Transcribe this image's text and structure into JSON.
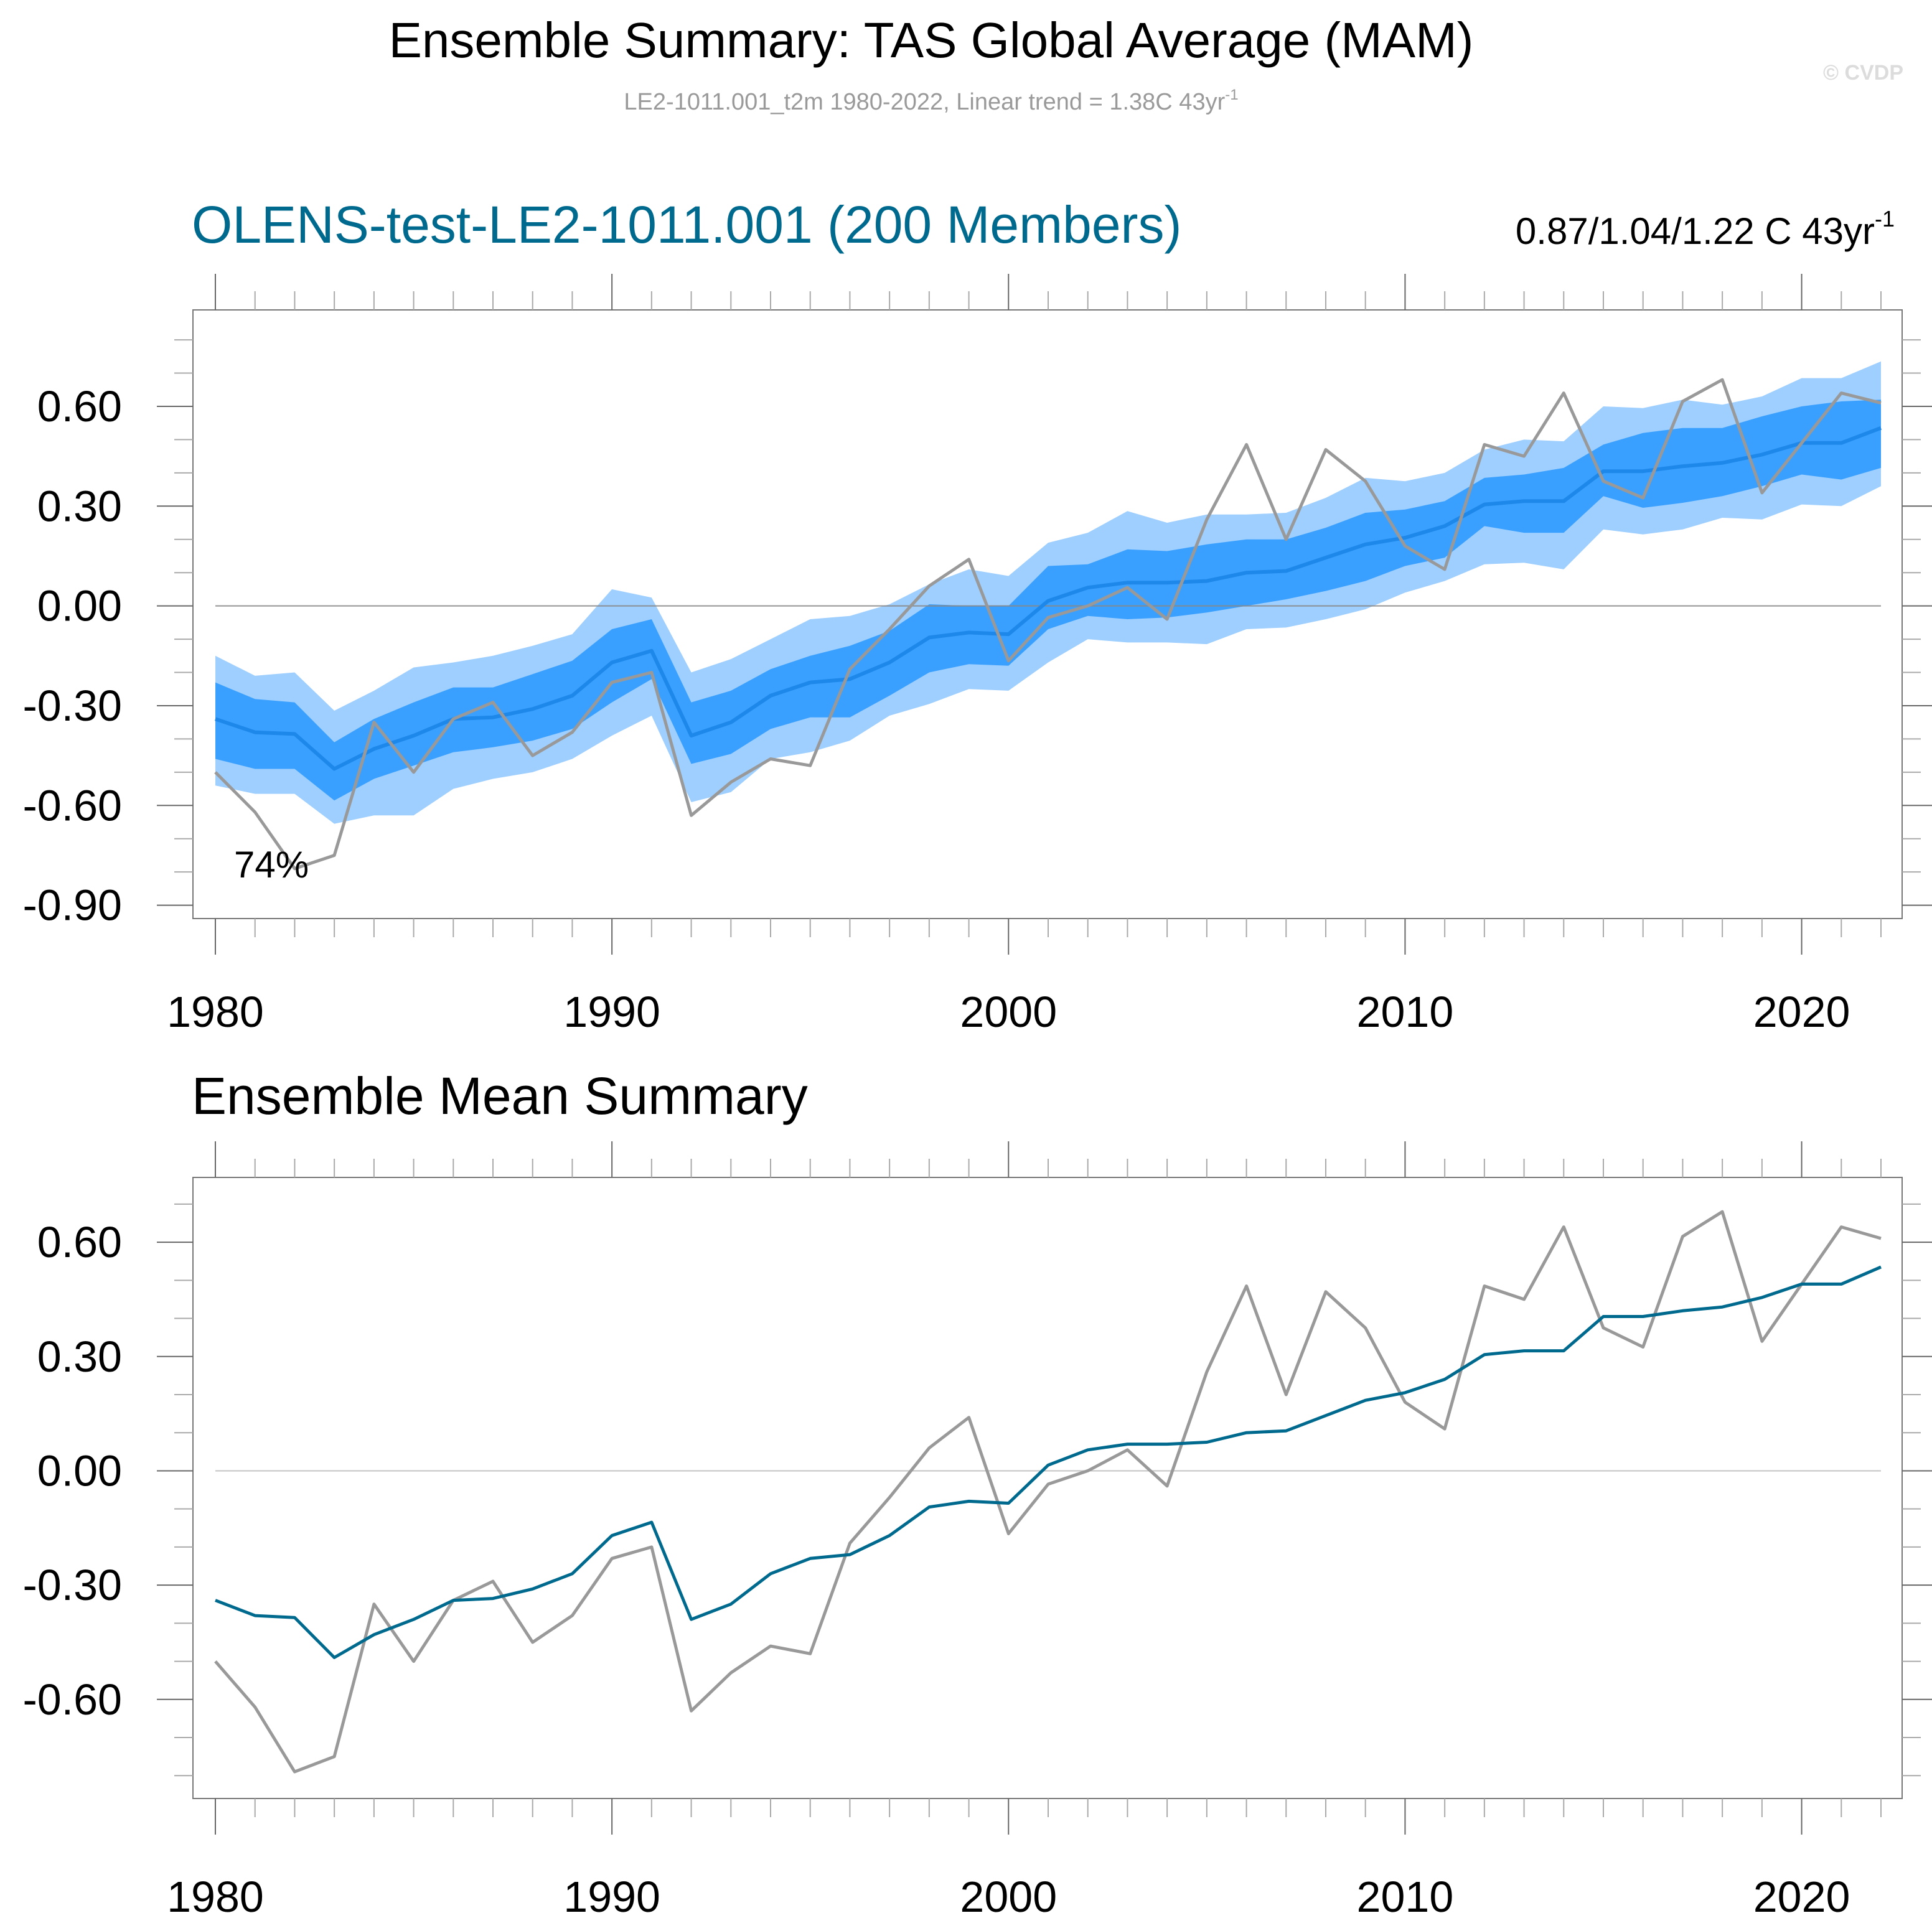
{
  "header": {
    "title": "Ensemble Summary: TAS Global Average (MAM)",
    "subtitle_main": "LE2-1011.001_t2m 1980-2022, Linear trend = 1.38C 43yr",
    "subtitle_sup": "-1",
    "watermark": "© CVDP"
  },
  "colors": {
    "outer_band": "#9ecfff",
    "inner_band": "#3aa0ff",
    "ensemble_median_top": "#1e88ea",
    "ensemble_mean_bottom": "#006a8e",
    "observations": "#999999",
    "title_blue": "#006a8e",
    "zero_line": "#888888"
  },
  "chart_data": [
    {
      "type": "area",
      "id": "ensemble-spread",
      "title": "OLENS-test-LE2-1011.001 (200 Members)",
      "right_label_main": "0.87/1.04/1.22 C 43yr",
      "right_label_sup": "-1",
      "annotation": "74%",
      "xlabel": "",
      "ylabel": "",
      "xlim": [
        1980,
        2022
      ],
      "ylim": [
        -0.94,
        0.89
      ],
      "x_ticks": [
        1980,
        1990,
        2000,
        2010,
        2020
      ],
      "x_tick_labels": [
        "1980",
        "1990",
        "2000",
        "2010",
        "2020"
      ],
      "y_ticks": [
        0.6,
        0.3,
        0.0,
        -0.3,
        -0.6,
        -0.9
      ],
      "y_tick_labels": [
        "0.60",
        "0.30",
        "0.00",
        "-0.30",
        "-0.60",
        "-0.90"
      ],
      "grid": false,
      "zero_line": true,
      "x": [
        1980,
        1981,
        1982,
        1983,
        1984,
        1985,
        1986,
        1987,
        1988,
        1989,
        1990,
        1991,
        1992,
        1993,
        1994,
        1995,
        1996,
        1997,
        1998,
        1999,
        2000,
        2001,
        2002,
        2003,
        2004,
        2005,
        2006,
        2007,
        2008,
        2009,
        2010,
        2011,
        2012,
        2013,
        2014,
        2015,
        2016,
        2017,
        2018,
        2019,
        2020,
        2021,
        2022
      ],
      "series": [
        {
          "name": "outer_upper",
          "values": [
            -0.15,
            -0.21,
            -0.2,
            -0.315,
            -0.255,
            -0.185,
            -0.17,
            -0.15,
            -0.12,
            -0.085,
            0.05,
            0.025,
            -0.2,
            -0.16,
            -0.1,
            -0.04,
            -0.03,
            0.005,
            0.065,
            0.11,
            0.09,
            0.19,
            0.22,
            0.285,
            0.25,
            0.275,
            0.275,
            0.28,
            0.325,
            0.385,
            0.375,
            0.4,
            0.47,
            0.5,
            0.495,
            0.6,
            0.595,
            0.62,
            0.605,
            0.63,
            0.685,
            0.685,
            0.735
          ]
        },
        {
          "name": "inner_upper",
          "values": [
            -0.23,
            -0.28,
            -0.29,
            -0.41,
            -0.34,
            -0.29,
            -0.245,
            -0.245,
            -0.205,
            -0.165,
            -0.07,
            -0.04,
            -0.29,
            -0.255,
            -0.19,
            -0.15,
            -0.12,
            -0.075,
            0.005,
            0.0,
            0.0,
            0.12,
            0.125,
            0.17,
            0.165,
            0.185,
            0.2,
            0.2,
            0.235,
            0.28,
            0.29,
            0.315,
            0.385,
            0.395,
            0.415,
            0.485,
            0.52,
            0.535,
            0.535,
            0.57,
            0.6,
            0.615,
            0.62
          ]
        },
        {
          "name": "median",
          "values": [
            -0.34,
            -0.38,
            -0.385,
            -0.49,
            -0.43,
            -0.39,
            -0.34,
            -0.335,
            -0.31,
            -0.27,
            -0.17,
            -0.135,
            -0.39,
            -0.35,
            -0.27,
            -0.23,
            -0.22,
            -0.17,
            -0.095,
            -0.08,
            -0.085,
            0.015,
            0.055,
            0.07,
            0.07,
            0.075,
            0.1,
            0.105,
            0.145,
            0.185,
            0.205,
            0.24,
            0.305,
            0.315,
            0.315,
            0.405,
            0.405,
            0.42,
            0.43,
            0.455,
            0.49,
            0.49,
            0.535
          ]
        },
        {
          "name": "inner_lower",
          "values": [
            -0.46,
            -0.49,
            -0.49,
            -0.585,
            -0.52,
            -0.48,
            -0.44,
            -0.425,
            -0.405,
            -0.37,
            -0.29,
            -0.22,
            -0.475,
            -0.445,
            -0.37,
            -0.335,
            -0.335,
            -0.27,
            -0.2,
            -0.175,
            -0.18,
            -0.07,
            -0.03,
            -0.04,
            -0.035,
            -0.02,
            0.0,
            0.02,
            0.045,
            0.075,
            0.12,
            0.145,
            0.24,
            0.22,
            0.22,
            0.33,
            0.295,
            0.31,
            0.33,
            0.36,
            0.395,
            0.38,
            0.415
          ]
        },
        {
          "name": "outer_lower",
          "values": [
            -0.54,
            -0.565,
            -0.565,
            -0.655,
            -0.63,
            -0.63,
            -0.55,
            -0.52,
            -0.5,
            -0.46,
            -0.39,
            -0.33,
            -0.59,
            -0.56,
            -0.46,
            -0.44,
            -0.405,
            -0.33,
            -0.295,
            -0.25,
            -0.255,
            -0.17,
            -0.1,
            -0.11,
            -0.11,
            -0.115,
            -0.07,
            -0.065,
            -0.04,
            -0.01,
            0.04,
            0.075,
            0.125,
            0.13,
            0.11,
            0.23,
            0.215,
            0.23,
            0.265,
            0.26,
            0.305,
            0.3,
            0.36
          ]
        },
        {
          "name": "observations",
          "values": [
            -0.5,
            -0.62,
            -0.79,
            -0.75,
            -0.35,
            -0.5,
            -0.34,
            -0.29,
            -0.45,
            -0.38,
            -0.23,
            -0.2,
            -0.63,
            -0.53,
            -0.46,
            -0.48,
            -0.19,
            -0.07,
            0.06,
            0.14,
            -0.165,
            -0.035,
            0.0,
            0.055,
            -0.04,
            0.26,
            0.485,
            0.2,
            0.47,
            0.375,
            0.18,
            0.11,
            0.485,
            0.45,
            0.64,
            0.375,
            0.325,
            0.615,
            0.68,
            0.34,
            0.49,
            0.64,
            0.61
          ]
        }
      ]
    },
    {
      "type": "line",
      "id": "ensemble-mean",
      "title": "Ensemble Mean Summary",
      "xlabel": "",
      "ylabel": "",
      "xlim": [
        1980,
        2022
      ],
      "ylim": [
        -0.86,
        0.77
      ],
      "x_ticks": [
        1980,
        1990,
        2000,
        2010,
        2020
      ],
      "x_tick_labels": [
        "1980",
        "1990",
        "2000",
        "2010",
        "2020"
      ],
      "y_ticks": [
        0.6,
        0.3,
        0.0,
        -0.3,
        -0.6
      ],
      "y_tick_labels": [
        "0.60",
        "0.30",
        "0.00",
        "-0.30",
        "-0.60"
      ],
      "grid": false,
      "zero_line": true,
      "x": [
        1980,
        1981,
        1982,
        1983,
        1984,
        1985,
        1986,
        1987,
        1988,
        1989,
        1990,
        1991,
        1992,
        1993,
        1994,
        1995,
        1996,
        1997,
        1998,
        1999,
        2000,
        2001,
        2002,
        2003,
        2004,
        2005,
        2006,
        2007,
        2008,
        2009,
        2010,
        2011,
        2012,
        2013,
        2014,
        2015,
        2016,
        2017,
        2018,
        2019,
        2020,
        2021,
        2022
      ],
      "series": [
        {
          "name": "ensemble_mean",
          "values": [
            -0.34,
            -0.38,
            -0.385,
            -0.49,
            -0.43,
            -0.39,
            -0.34,
            -0.335,
            -0.31,
            -0.27,
            -0.17,
            -0.135,
            -0.39,
            -0.35,
            -0.27,
            -0.23,
            -0.22,
            -0.17,
            -0.095,
            -0.08,
            -0.085,
            0.015,
            0.055,
            0.07,
            0.07,
            0.075,
            0.1,
            0.105,
            0.145,
            0.185,
            0.205,
            0.24,
            0.305,
            0.315,
            0.315,
            0.405,
            0.405,
            0.42,
            0.43,
            0.455,
            0.49,
            0.49,
            0.535
          ]
        },
        {
          "name": "observations",
          "values": [
            -0.5,
            -0.62,
            -0.79,
            -0.75,
            -0.35,
            -0.5,
            -0.34,
            -0.29,
            -0.45,
            -0.38,
            -0.23,
            -0.2,
            -0.63,
            -0.53,
            -0.46,
            -0.48,
            -0.19,
            -0.07,
            0.06,
            0.14,
            -0.165,
            -0.035,
            0.0,
            0.055,
            -0.04,
            0.26,
            0.485,
            0.2,
            0.47,
            0.375,
            0.18,
            0.11,
            0.485,
            0.45,
            0.64,
            0.375,
            0.325,
            0.615,
            0.68,
            0.34,
            0.49,
            0.64,
            0.61
          ]
        }
      ]
    }
  ]
}
